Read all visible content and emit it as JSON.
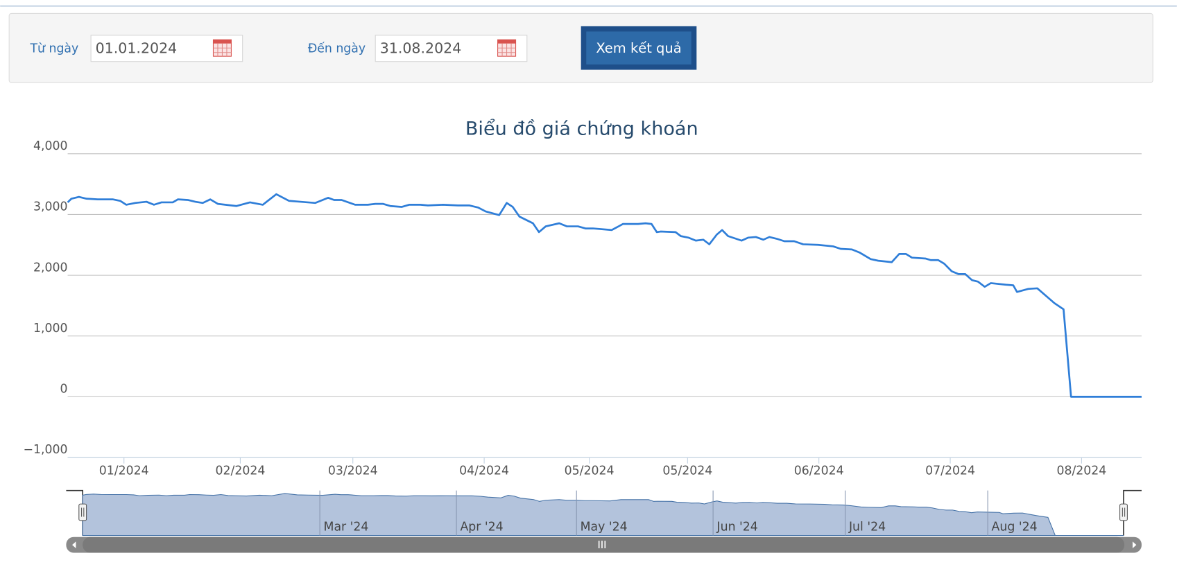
{
  "form": {
    "from_label": "Từ ngày",
    "from_value": "01.01.2024",
    "to_label": "Đến ngày",
    "to_value": "31.08.2024",
    "button": "Xem kết quả"
  },
  "chart_data": {
    "type": "line",
    "title": "Biểu đồ giá chứng khoán",
    "color": "#2f7ed8",
    "grid": true,
    "x": [
      0,
      5,
      15,
      25,
      40,
      60,
      70,
      78,
      90,
      105,
      115,
      125,
      140,
      147,
      160,
      170,
      180,
      190,
      200,
      210,
      225,
      243,
      260,
      278,
      295,
      310,
      330,
      347,
      355,
      365,
      383,
      400,
      410,
      420,
      430,
      445,
      455,
      470,
      480,
      500,
      520,
      535,
      547,
      557,
      575,
      585,
      593,
      602,
      620,
      628,
      637,
      655,
      665,
      680,
      690,
      700,
      725,
      740,
      760,
      770,
      778,
      785,
      790,
      810,
      817,
      827,
      837,
      847,
      855,
      865,
      872,
      880,
      898,
      907,
      917,
      927,
      935,
      945,
      955,
      968,
      980,
      1000,
      1020,
      1030,
      1045,
      1055,
      1070,
      1080,
      1098,
      1108,
      1117,
      1125,
      1143,
      1150,
      1160,
      1168,
      1178,
      1187,
      1196,
      1205,
      1213,
      1222,
      1230,
      1250,
      1260,
      1265,
      1280,
      1292,
      1307,
      1315,
      1327,
      1337,
      1431
    ],
    "values": [
      3200,
      3260,
      3290,
      3260,
      3250,
      3250,
      3225,
      3160,
      3190,
      3210,
      3160,
      3200,
      3200,
      3250,
      3240,
      3210,
      3190,
      3250,
      3175,
      3160,
      3140,
      3200,
      3160,
      3335,
      3225,
      3210,
      3190,
      3275,
      3240,
      3240,
      3160,
      3160,
      3175,
      3175,
      3140,
      3125,
      3160,
      3160,
      3150,
      3160,
      3150,
      3150,
      3115,
      3050,
      2990,
      3190,
      3125,
      2965,
      2855,
      2710,
      2805,
      2855,
      2805,
      2805,
      2770,
      2770,
      2745,
      2845,
      2845,
      2855,
      2845,
      2710,
      2720,
      2710,
      2645,
      2620,
      2570,
      2585,
      2510,
      2670,
      2745,
      2645,
      2570,
      2620,
      2630,
      2585,
      2630,
      2600,
      2560,
      2560,
      2510,
      2500,
      2475,
      2435,
      2425,
      2375,
      2265,
      2240,
      2215,
      2350,
      2350,
      2290,
      2275,
      2250,
      2250,
      2190,
      2065,
      2020,
      2020,
      1920,
      1895,
      1810,
      1870,
      1845,
      1835,
      1725,
      1775,
      1785,
      1625,
      1540,
      1440,
      0,
      0
    ],
    "xlim": [
      0,
      1431
    ],
    "xticks": [
      {
        "value": 75,
        "label": "01/2024"
      },
      {
        "value": 230,
        "label": "02/2024"
      },
      {
        "value": 380,
        "label": "03/2024"
      },
      {
        "value": 555,
        "label": "04/2024"
      },
      {
        "value": 695,
        "label": "05/2024"
      },
      {
        "value": 826,
        "label": "05/2024"
      },
      {
        "value": 1001,
        "label": "06/2024"
      },
      {
        "value": 1176,
        "label": "07/2024"
      },
      {
        "value": 1351,
        "label": "08/2024"
      }
    ],
    "ylim": [
      -1000,
      4000
    ],
    "yticks": [
      {
        "value": -1000,
        "label": "−1,000"
      },
      0,
      {
        "value": 1000,
        "label": "1,000"
      },
      {
        "value": 2000,
        "label": "2,000"
      },
      {
        "value": 3000,
        "label": "3,000"
      },
      {
        "value": 4000,
        "label": "4,000"
      }
    ],
    "navigator_labels": [
      "Mar '24",
      "Apr '24",
      "May '24",
      "Jun '24",
      "Jul '24",
      "Aug '24"
    ]
  }
}
